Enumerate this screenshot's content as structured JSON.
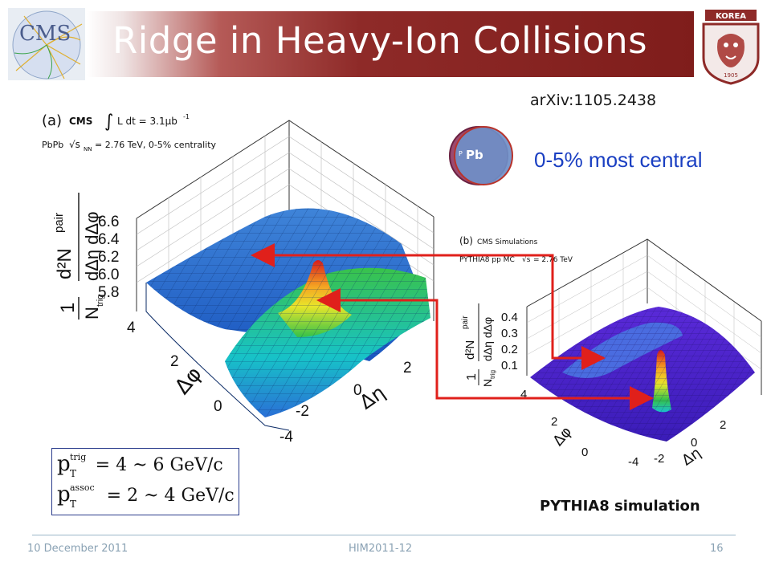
{
  "header": {
    "title": "Ridge in Heavy-Ion Collisions",
    "cms_logo_text": "CMS"
  },
  "reference": "arXiv:1105.2438",
  "centrality_label": "0-5% most central",
  "pbpb_icon_text": "Pb",
  "pbpb_icon_small": "P",
  "plot_a": {
    "panel_label": "(a)",
    "experiment": "CMS",
    "lumi": "L dt = 3.1μb",
    "lumi_exp": "-1",
    "system": "PbPb",
    "energy_text": "= 2.76 TeV, 0-5% centrality",
    "energy_sub": "NN",
    "z_ticks": [
      "6.6",
      "6.4",
      "6.2",
      "6.0",
      "5.8"
    ],
    "phi_ticks": [
      "4",
      "2",
      "0"
    ],
    "eta_ticks": [
      "2",
      "0",
      "-2",
      "-4"
    ],
    "y_axis_label_1": "1",
    "y_axis_label_N": "N",
    "y_axis_label_trig": "trig",
    "y_axis_label_num": "d²N",
    "y_axis_label_pair": "pair",
    "y_axis_label_den": "dΔη dΔφ",
    "phi_axis": "Δφ",
    "eta_axis": "Δη"
  },
  "plot_b": {
    "panel_label": "(b)",
    "experiment": "CMS Simulations",
    "generator": "PYTHIA8 pp MC",
    "energy_text": "= 2.76 TeV",
    "z_ticks": [
      "0.4",
      "0.3",
      "0.2",
      "0.1"
    ],
    "phi_ticks": [
      "4",
      "2",
      "0"
    ],
    "eta_ticks": [
      "2",
      "0",
      "-2",
      "-4"
    ],
    "phi_axis": "Δφ",
    "eta_axis": "Δη"
  },
  "pt_cuts": {
    "trig_value": "= 4 ~ 6 GeV/c",
    "assoc_value": "= 2 ~ 4 GeV/c",
    "p": "p",
    "T": "T",
    "trig": "trig",
    "assoc": "assoc"
  },
  "pythia_caption": "PYTHIA8 simulation",
  "footer": {
    "date": "10 December 2011",
    "conference": "HIM2011-12",
    "page": "16"
  },
  "colors": {
    "title_bar": "#7f1d1b",
    "centrality_text": "#1a3fc2",
    "arrow": "#e0201b"
  }
}
